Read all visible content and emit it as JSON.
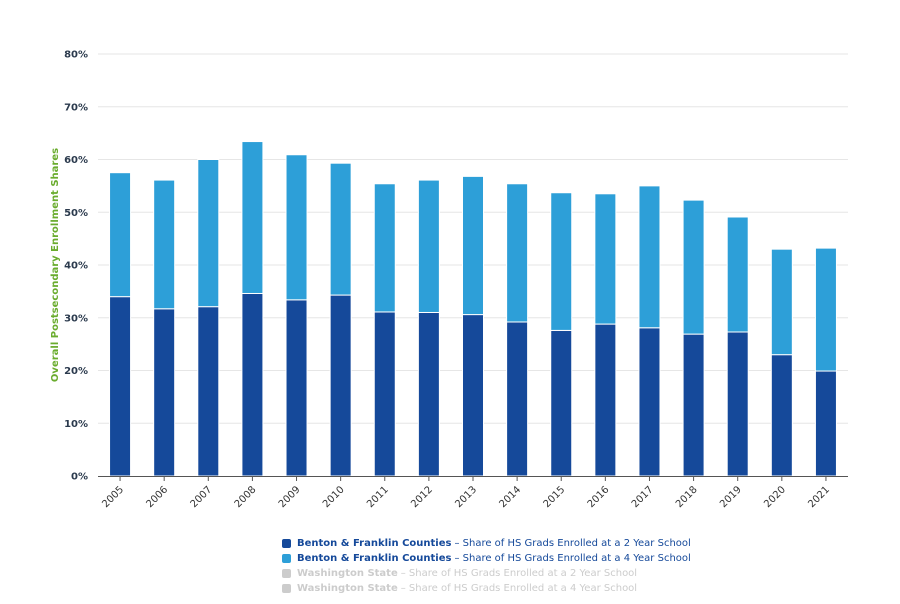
{
  "chart_data": {
    "type": "bar",
    "stacked": true,
    "ylabel": "Overall Postsecondary Enrollment Shares",
    "xlabel": "",
    "ylim": [
      0,
      80
    ],
    "yticks": [
      "0%",
      "10%",
      "20%",
      "30%",
      "40%",
      "50%",
      "60%",
      "70%",
      "80%"
    ],
    "ytick_values": [
      0,
      10,
      20,
      30,
      40,
      50,
      60,
      70,
      80
    ],
    "categories": [
      "2005",
      "2006",
      "2007",
      "2008",
      "2009",
      "2010",
      "2011",
      "2012",
      "2013",
      "2014",
      "2015",
      "2016",
      "2017",
      "2018",
      "2019",
      "2020",
      "2021"
    ],
    "series": [
      {
        "name": "Benton & Franklin Counties – Share of HS Grads Enrolled at a 2 Year School",
        "color": "#15499a",
        "values": [
          34.0,
          31.7,
          32.1,
          34.6,
          33.4,
          34.3,
          31.1,
          31.0,
          30.6,
          29.2,
          27.6,
          28.8,
          28.1,
          26.9,
          27.3,
          23.0,
          19.9
        ]
      },
      {
        "name": "Benton & Franklin Counties – Share of HS Grads Enrolled at a 4 Year School",
        "color": "#2d9fd8",
        "values": [
          23.5,
          24.4,
          27.9,
          28.8,
          27.5,
          25.0,
          24.3,
          25.1,
          26.2,
          26.2,
          26.1,
          24.7,
          26.9,
          25.4,
          21.8,
          20.0,
          23.3
        ]
      }
    ],
    "legend": [
      {
        "bold": "Benton & Franklin Counties",
        "rest": "– Share of HS Grads Enrolled at a 2 Year School",
        "color": "#15499a",
        "text_color": "#15499a"
      },
      {
        "bold": "Benton & Franklin Counties",
        "rest": "– Share of HS Grads Enrolled at a 4 Year School",
        "color": "#2d9fd8",
        "text_color": "#15499a"
      },
      {
        "bold": "Washington State",
        "rest": "– Share of HS Grads Enrolled at a 2 Year School",
        "color": "#cccccc",
        "text_color": "#cccccc"
      },
      {
        "bold": "Washington State",
        "rest": "– Share of HS Grads Enrolled at a 4 Year School",
        "color": "#cccccc",
        "text_color": "#cccccc"
      }
    ],
    "grid": true,
    "axis_label_color": "#6aac2e",
    "tick_label_color": "#2b3a4d"
  }
}
